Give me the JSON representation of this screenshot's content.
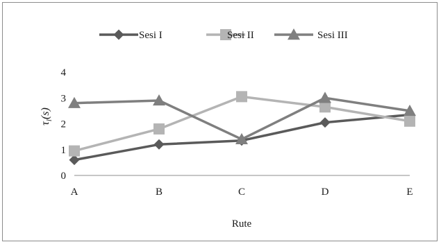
{
  "chart_data": {
    "type": "line",
    "categories": [
      "A",
      "B",
      "C",
      "D",
      "E"
    ],
    "series": [
      {
        "name": "Sesi I",
        "values": [
          0.6,
          1.2,
          1.35,
          2.05,
          2.35
        ],
        "color": "#5a5a5a",
        "marker": "diamond"
      },
      {
        "name": "Sesi II",
        "values": [
          0.95,
          1.8,
          3.05,
          2.65,
          2.1
        ],
        "color": "#b4b4b4",
        "marker": "square"
      },
      {
        "name": "Sesi III",
        "values": [
          2.8,
          2.9,
          1.4,
          3.0,
          2.5
        ],
        "color": "#7f7f7f",
        "marker": "triangle"
      }
    ],
    "xlabel": "Rute",
    "ylabel_main": "τ",
    "ylabel_sub": "l",
    "ylabel_suffix": "(s)",
    "yticks": [
      "0",
      "1",
      "2",
      "3",
      "4"
    ],
    "ylim": [
      0,
      4
    ],
    "grid": false,
    "legend_position": "top"
  }
}
